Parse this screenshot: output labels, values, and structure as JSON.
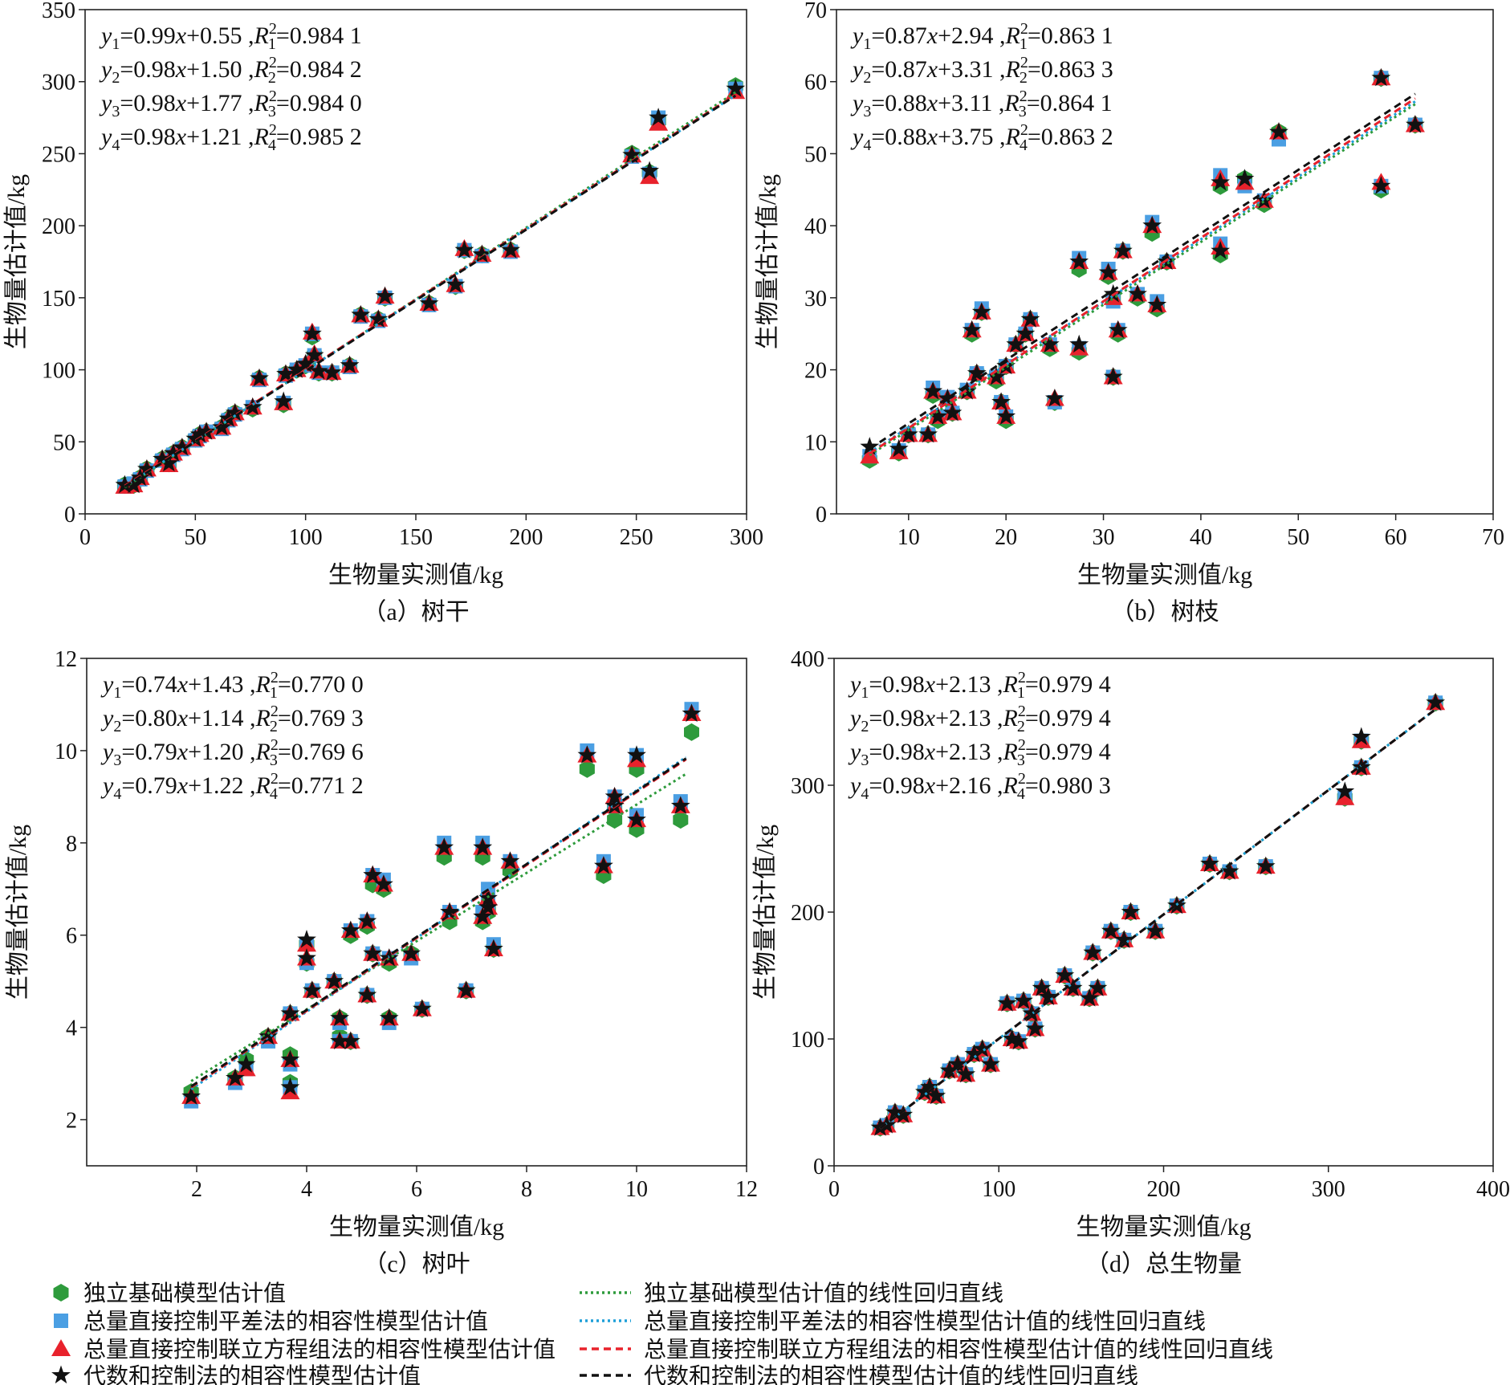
{
  "chart_data": [
    {
      "type": "scatter",
      "caption": "（a）树干",
      "xlabel": "生物量实测值/kg",
      "ylabel": "生物量估计值/kg",
      "xlim": [
        0,
        300
      ],
      "ylim": [
        0,
        350
      ],
      "xticks": [
        0,
        50,
        100,
        150,
        200,
        250,
        300
      ],
      "yticks": [
        0,
        50,
        100,
        150,
        200,
        250,
        300,
        350
      ],
      "equations": [
        {
          "a": "0.99",
          "b": "0.55",
          "r2": "0.984 1"
        },
        {
          "a": "0.98",
          "b": "1.50",
          "r2": "0.984 2"
        },
        {
          "a": "0.98",
          "b": "1.77",
          "r2": "0.984 0"
        },
        {
          "a": "0.98",
          "b": "1.21",
          "r2": "0.985 2"
        }
      ],
      "fit_range": [
        18,
        295
      ],
      "points_columns": [
        "x",
        "y1",
        "y2",
        "y3",
        "y4"
      ],
      "points": [
        [
          18,
          20,
          19,
          19,
          20
        ],
        [
          22,
          20,
          21,
          20,
          20
        ],
        [
          25,
          25,
          24,
          25,
          25
        ],
        [
          28,
          31,
          30,
          31,
          31
        ],
        [
          35,
          38,
          37,
          38,
          38
        ],
        [
          38,
          35,
          34,
          34,
          35
        ],
        [
          40,
          42,
          41,
          42,
          42
        ],
        [
          44,
          46,
          45,
          46,
          46
        ],
        [
          50,
          52,
          51,
          52,
          52
        ],
        [
          52,
          55,
          54,
          55,
          55
        ],
        [
          55,
          57,
          57,
          57,
          57
        ],
        [
          62,
          60,
          59,
          60,
          60
        ],
        [
          65,
          66,
          65,
          66,
          66
        ],
        [
          68,
          70,
          69,
          70,
          70
        ],
        [
          76,
          73,
          74,
          74,
          74
        ],
        [
          79,
          94,
          93,
          94,
          94
        ],
        [
          90,
          76,
          77,
          77,
          78
        ],
        [
          91,
          97,
          96,
          97,
          97
        ],
        [
          96,
          100,
          100,
          100,
          100
        ],
        [
          100,
          103,
          103,
          104,
          104
        ],
        [
          103,
          123,
          125,
          126,
          125
        ],
        [
          104,
          110,
          110,
          111,
          110
        ],
        [
          106,
          98,
          98,
          99,
          99
        ],
        [
          112,
          98,
          98,
          98,
          98
        ],
        [
          120,
          103,
          102,
          103,
          103
        ],
        [
          125,
          138,
          137,
          138,
          138
        ],
        [
          133,
          135,
          134,
          135,
          135
        ],
        [
          136,
          150,
          150,
          151,
          151
        ],
        [
          156,
          146,
          145,
          146,
          146
        ],
        [
          168,
          158,
          158,
          159,
          159
        ],
        [
          172,
          183,
          183,
          184,
          183
        ],
        [
          180,
          180,
          179,
          180,
          180
        ],
        [
          193,
          183,
          182,
          183,
          183
        ],
        [
          248,
          250,
          248,
          249,
          249
        ],
        [
          256,
          237,
          236,
          234,
          238
        ],
        [
          260,
          273,
          275,
          271,
          275
        ],
        [
          295,
          297,
          295,
          293,
          295
        ]
      ]
    },
    {
      "type": "scatter",
      "caption": "（b）树枝",
      "xlabel": "生物量实测值/kg",
      "ylabel": "生物量估计值/kg",
      "xlim": [
        2.6,
        70
      ],
      "ylim": [
        0,
        70
      ],
      "xticks": [
        10,
        20,
        30,
        40,
        50,
        60,
        70
      ],
      "yticks": [
        0,
        10,
        20,
        30,
        40,
        50,
        60,
        70
      ],
      "equations": [
        {
          "a": "0.87",
          "b": "2.94",
          "r2": "0.863 1"
        },
        {
          "a": "0.87",
          "b": "3.31",
          "r2": "0.863 3"
        },
        {
          "a": "0.88",
          "b": "3.11",
          "r2": "0.864 1"
        },
        {
          "a": "0.88",
          "b": "3.75",
          "r2": "0.863 2"
        }
      ],
      "fit_range": [
        6,
        62
      ],
      "points_columns": [
        "x",
        "y1",
        "y2",
        "y3",
        "y4"
      ],
      "points": [
        [
          6,
          7.5,
          8,
          8,
          9.3
        ],
        [
          9,
          8.5,
          8.8,
          8.6,
          9
        ],
        [
          10,
          11,
          11,
          11,
          11
        ],
        [
          12,
          11,
          11,
          11,
          11
        ],
        [
          12.5,
          16.5,
          17.5,
          17,
          17
        ],
        [
          13,
          13,
          13.5,
          13.5,
          13.5
        ],
        [
          14,
          16,
          16.2,
          16,
          16
        ],
        [
          14.5,
          14,
          14,
          14,
          14
        ],
        [
          16,
          17,
          17.2,
          17,
          17
        ],
        [
          16.5,
          25,
          25.5,
          25.5,
          25.5
        ],
        [
          17,
          19.5,
          19.5,
          19.5,
          19.5
        ],
        [
          17.5,
          28,
          28.5,
          28,
          28
        ],
        [
          19,
          18.5,
          19,
          19,
          19
        ],
        [
          19.5,
          15.5,
          15.5,
          15.5,
          15.5
        ],
        [
          20,
          13,
          13.5,
          13.5,
          13.5
        ],
        [
          20,
          20.5,
          20.5,
          20.5,
          20.5
        ],
        [
          21,
          23.5,
          23.5,
          23.5,
          23.5
        ],
        [
          22,
          25,
          25,
          25,
          25
        ],
        [
          22.5,
          27,
          27,
          27,
          27
        ],
        [
          24.5,
          23,
          23.5,
          23.5,
          23.5
        ],
        [
          25,
          15.5,
          15.5,
          16,
          16
        ],
        [
          27.5,
          22.5,
          23,
          23,
          23.5
        ],
        [
          27.5,
          34,
          35.5,
          35,
          35
        ],
        [
          30.5,
          33,
          34,
          33.5,
          33.5
        ],
        [
          31,
          19,
          19,
          19,
          19
        ],
        [
          31,
          30,
          29.5,
          30,
          30.5
        ],
        [
          31.5,
          25,
          25.5,
          25.5,
          25.5
        ],
        [
          32,
          36.5,
          36.5,
          36.5,
          36.5
        ],
        [
          33.5,
          30,
          30.5,
          30.5,
          30.5
        ],
        [
          35,
          39,
          40.5,
          40,
          40
        ],
        [
          35.5,
          28.5,
          29.5,
          29,
          29
        ],
        [
          36.5,
          35,
          35,
          35,
          35
        ],
        [
          42,
          45.5,
          47,
          46.5,
          46
        ],
        [
          42,
          36,
          37.5,
          37,
          36.5
        ],
        [
          44.5,
          46.5,
          45.5,
          46,
          46.5
        ],
        [
          46.5,
          43,
          43.5,
          43.5,
          43.5
        ],
        [
          48,
          53,
          52,
          53,
          53
        ],
        [
          58.5,
          60.5,
          60.5,
          60.5,
          60.5
        ],
        [
          58.5,
          45,
          45.5,
          46,
          45.5
        ],
        [
          62,
          54,
          54,
          54,
          54
        ]
      ]
    },
    {
      "type": "scatter",
      "caption": "（c）树叶",
      "xlabel": "生物量实测值/kg",
      "ylabel": "生物量估计值/kg",
      "xlim": [
        0,
        12
      ],
      "ylim": [
        1,
        12
      ],
      "xticks": [
        2,
        4,
        6,
        8,
        10,
        12
      ],
      "yticks": [
        2,
        4,
        6,
        8,
        10,
        12
      ],
      "equations": [
        {
          "a": "0.74",
          "b": "1.43",
          "r2": "0.770 0"
        },
        {
          "a": "0.80",
          "b": "1.14",
          "r2": "0.769 3"
        },
        {
          "a": "0.79",
          "b": "1.20",
          "r2": "0.769 6"
        },
        {
          "a": "0.79",
          "b": "1.22",
          "r2": "0.771 2"
        }
      ],
      "fit_range": [
        1.9,
        10.9
      ],
      "points_columns": [
        "x",
        "y1",
        "y2",
        "y3",
        "y4"
      ],
      "points": [
        [
          1.9,
          2.6,
          2.4,
          2.5,
          2.5
        ],
        [
          2.7,
          2.9,
          2.8,
          2.9,
          2.9
        ],
        [
          2.9,
          3.3,
          3.1,
          3.1,
          3.2
        ],
        [
          3.3,
          3.8,
          3.7,
          3.8,
          3.8
        ],
        [
          3.7,
          4.3,
          4.3,
          4.3,
          4.3
        ],
        [
          3.7,
          3.4,
          3.2,
          3.3,
          3.3
        ],
        [
          3.7,
          2.8,
          2.7,
          2.6,
          2.7
        ],
        [
          4,
          5.8,
          5.8,
          5.8,
          5.9
        ],
        [
          4,
          5.4,
          5.4,
          5.5,
          5.5
        ],
        [
          4.1,
          4.8,
          4.8,
          4.8,
          4.8
        ],
        [
          4.5,
          5,
          5,
          5,
          5
        ],
        [
          4.6,
          4.2,
          4.1,
          4.2,
          4.2
        ],
        [
          4.6,
          3.8,
          3.7,
          3.7,
          3.7
        ],
        [
          4.8,
          3.7,
          3.7,
          3.7,
          3.7
        ],
        [
          4.8,
          6,
          6.1,
          6.1,
          6.1
        ],
        [
          5.1,
          6.2,
          6.3,
          6.3,
          6.3
        ],
        [
          5.1,
          4.7,
          4.7,
          4.7,
          4.7
        ],
        [
          5.2,
          5.6,
          5.6,
          5.6,
          5.6
        ],
        [
          5.2,
          7.1,
          7.3,
          7.3,
          7.3
        ],
        [
          5.4,
          7,
          7.2,
          7.1,
          7.1
        ],
        [
          5.5,
          4.2,
          4.1,
          4.2,
          4.2
        ],
        [
          5.5,
          5.4,
          5.5,
          5.5,
          5.5
        ],
        [
          5.9,
          5.6,
          5.5,
          5.6,
          5.6
        ],
        [
          6.1,
          4.4,
          4.4,
          4.4,
          4.4
        ],
        [
          6.5,
          7.7,
          8,
          7.9,
          7.9
        ],
        [
          6.6,
          6.3,
          6.5,
          6.5,
          6.5
        ],
        [
          6.9,
          4.8,
          4.8,
          4.8,
          4.8
        ],
        [
          7.2,
          7.7,
          8,
          7.9,
          7.9
        ],
        [
          7.2,
          6.3,
          6.5,
          6.4,
          6.4
        ],
        [
          7.3,
          6.6,
          7,
          6.8,
          6.8
        ],
        [
          7.3,
          6.5,
          6.7,
          6.6,
          6.6
        ],
        [
          7.4,
          5.7,
          5.8,
          5.7,
          5.7
        ],
        [
          7.7,
          7.4,
          7.6,
          7.6,
          7.6
        ],
        [
          9.1,
          9.6,
          10,
          9.9,
          9.9
        ],
        [
          9.4,
          7.3,
          7.6,
          7.5,
          7.5
        ],
        [
          9.6,
          8.5,
          8.8,
          8.8,
          8.8
        ],
        [
          9.6,
          8.8,
          9.0,
          9.0,
          9.0
        ],
        [
          10,
          9.6,
          9.9,
          9.8,
          9.9
        ],
        [
          10,
          8.3,
          8.6,
          8.5,
          8.5
        ],
        [
          10.8,
          8.5,
          8.9,
          8.8,
          8.8
        ],
        [
          11,
          10.4,
          10.9,
          10.8,
          10.8
        ]
      ]
    },
    {
      "type": "scatter",
      "caption": "（d）总生物量",
      "xlabel": "生物量实测值/kg",
      "ylabel": "生物量估计值/kg",
      "xlim": [
        0,
        400
      ],
      "ylim": [
        0,
        400
      ],
      "xticks": [
        0,
        100,
        200,
        300,
        400
      ],
      "yticks": [
        0,
        100,
        200,
        300,
        400
      ],
      "equations": [
        {
          "a": "0.98",
          "b": "2.13",
          "r2": "0.979 4"
        },
        {
          "a": "0.98",
          "b": "2.13",
          "r2": "0.979 4"
        },
        {
          "a": "0.98",
          "b": "2.13",
          "r2": "0.979 4"
        },
        {
          "a": "0.98",
          "b": "2.16",
          "r2": "0.980 3"
        }
      ],
      "fit_range": [
        28,
        365
      ],
      "points_columns": [
        "x",
        "y1",
        "y2",
        "y3",
        "y4"
      ],
      "points": [
        [
          28,
          30,
          30,
          30,
          30
        ],
        [
          32,
          32,
          32,
          32,
          32
        ],
        [
          37,
          42,
          42,
          42,
          42
        ],
        [
          42,
          40,
          40,
          40,
          40
        ],
        [
          55,
          58,
          58,
          58,
          58
        ],
        [
          58,
          62,
          62,
          62,
          62
        ],
        [
          62,
          55,
          55,
          55,
          55
        ],
        [
          70,
          75,
          75,
          75,
          75
        ],
        [
          75,
          80,
          80,
          80,
          80
        ],
        [
          80,
          72,
          72,
          72,
          72
        ],
        [
          85,
          88,
          88,
          88,
          88
        ],
        [
          90,
          92,
          92,
          92,
          92
        ],
        [
          95,
          80,
          80,
          80,
          80
        ],
        [
          105,
          128,
          128,
          128,
          128
        ],
        [
          108,
          100,
          100,
          100,
          100
        ],
        [
          112,
          98,
          98,
          98,
          98
        ],
        [
          115,
          130,
          130,
          130,
          130
        ],
        [
          120,
          120,
          120,
          120,
          120
        ],
        [
          122,
          108,
          108,
          108,
          108
        ],
        [
          126,
          140,
          140,
          140,
          140
        ],
        [
          130,
          133,
          133,
          133,
          133
        ],
        [
          140,
          150,
          150,
          150,
          150
        ],
        [
          145,
          140,
          140,
          140,
          140
        ],
        [
          155,
          132,
          132,
          132,
          132
        ],
        [
          157,
          168,
          168,
          168,
          168
        ],
        [
          160,
          140,
          140,
          140,
          140
        ],
        [
          168,
          185,
          185,
          185,
          185
        ],
        [
          176,
          178,
          178,
          178,
          178
        ],
        [
          180,
          200,
          200,
          200,
          200
        ],
        [
          195,
          185,
          185,
          185,
          185
        ],
        [
          208,
          205,
          205,
          205,
          205
        ],
        [
          228,
          238,
          238,
          238,
          238
        ],
        [
          240,
          232,
          232,
          232,
          232
        ],
        [
          262,
          236,
          236,
          236,
          236
        ],
        [
          310,
          290,
          290,
          290,
          295
        ],
        [
          320,
          335,
          335,
          335,
          338
        ],
        [
          320,
          314,
          314,
          314,
          314
        ],
        [
          365,
          365,
          365,
          365,
          365
        ]
      ]
    }
  ],
  "legend": {
    "markers": [
      {
        "label": "独立基础模型估计值",
        "shape": "hexagon",
        "color": "#2e9b3c"
      },
      {
        "label": "总量直接控制平差法的相容性模型估计值",
        "shape": "square",
        "color": "#4b9fe3"
      },
      {
        "label": "总量直接控制联立方程组法的相容性模型估计值",
        "shape": "triangle",
        "color": "#e8222c"
      },
      {
        "label": "代数和控制法的相容性模型估计值",
        "shape": "star",
        "color": "#111111"
      }
    ],
    "lines": [
      {
        "label": "独立基础模型估计值的线性回归直线",
        "style": "dotted",
        "color": "#2e9b3c"
      },
      {
        "label": "总量直接控制平差法的相容性模型估计值的线性回归直线",
        "style": "dotted",
        "color": "#1e9fd8"
      },
      {
        "label": "总量直接控制联立方程组法的相容性模型估计值的线性回归直线",
        "style": "dashed",
        "color": "#e8222c"
      },
      {
        "label": "代数和控制法的相容性模型估计值的线性回归直线",
        "style": "dashed",
        "color": "#111111"
      }
    ]
  }
}
